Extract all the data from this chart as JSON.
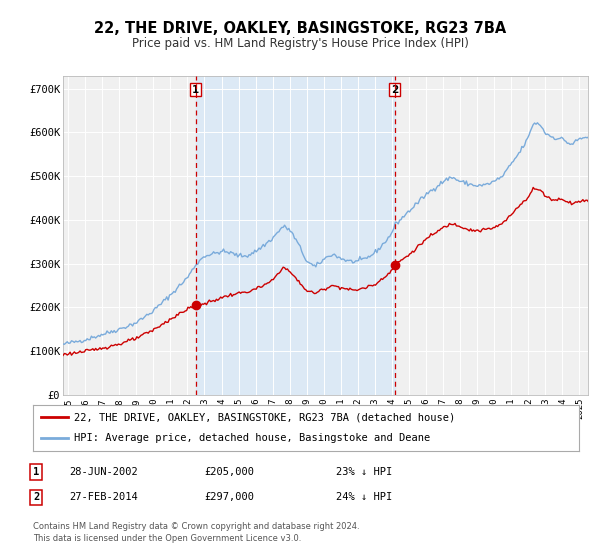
{
  "title": "22, THE DRIVE, OAKLEY, BASINGSTOKE, RG23 7BA",
  "subtitle": "Price paid vs. HM Land Registry's House Price Index (HPI)",
  "title_fontsize": 10.5,
  "subtitle_fontsize": 9,
  "background_color": "#ffffff",
  "plot_bg_color": "#f0f0f0",
  "red_line_color": "#cc0000",
  "blue_line_color": "#7aabdb",
  "shade_color": "#dce9f5",
  "vline_color": "#cc0000",
  "ylim": [
    0,
    730000
  ],
  "yticks": [
    0,
    100000,
    200000,
    300000,
    400000,
    500000,
    600000,
    700000
  ],
  "ytick_labels": [
    "£0",
    "£100K",
    "£200K",
    "£300K",
    "£400K",
    "£500K",
    "£600K",
    "£700K"
  ],
  "xmin": 1994.7,
  "xmax": 2025.5,
  "xticks": [
    1995,
    1996,
    1997,
    1998,
    1999,
    2000,
    2001,
    2002,
    2003,
    2004,
    2005,
    2006,
    2007,
    2008,
    2009,
    2010,
    2011,
    2012,
    2013,
    2014,
    2015,
    2016,
    2017,
    2018,
    2019,
    2020,
    2021,
    2022,
    2023,
    2024,
    2025
  ],
  "vline1_x": 2002.49,
  "vline2_x": 2014.16,
  "marker1_x": 2002.49,
  "marker1_y": 205000,
  "marker2_x": 2014.16,
  "marker2_y": 297000,
  "legend_red": "22, THE DRIVE, OAKLEY, BASINGSTOKE, RG23 7BA (detached house)",
  "legend_blue": "HPI: Average price, detached house, Basingstoke and Deane",
  "annotation1_label": "1",
  "annotation1_date": "28-JUN-2002",
  "annotation1_price": "£205,000",
  "annotation1_hpi": "23% ↓ HPI",
  "annotation2_label": "2",
  "annotation2_date": "27-FEB-2014",
  "annotation2_price": "£297,000",
  "annotation2_hpi": "24% ↓ HPI",
  "footer": "Contains HM Land Registry data © Crown copyright and database right 2024.\nThis data is licensed under the Open Government Licence v3.0."
}
